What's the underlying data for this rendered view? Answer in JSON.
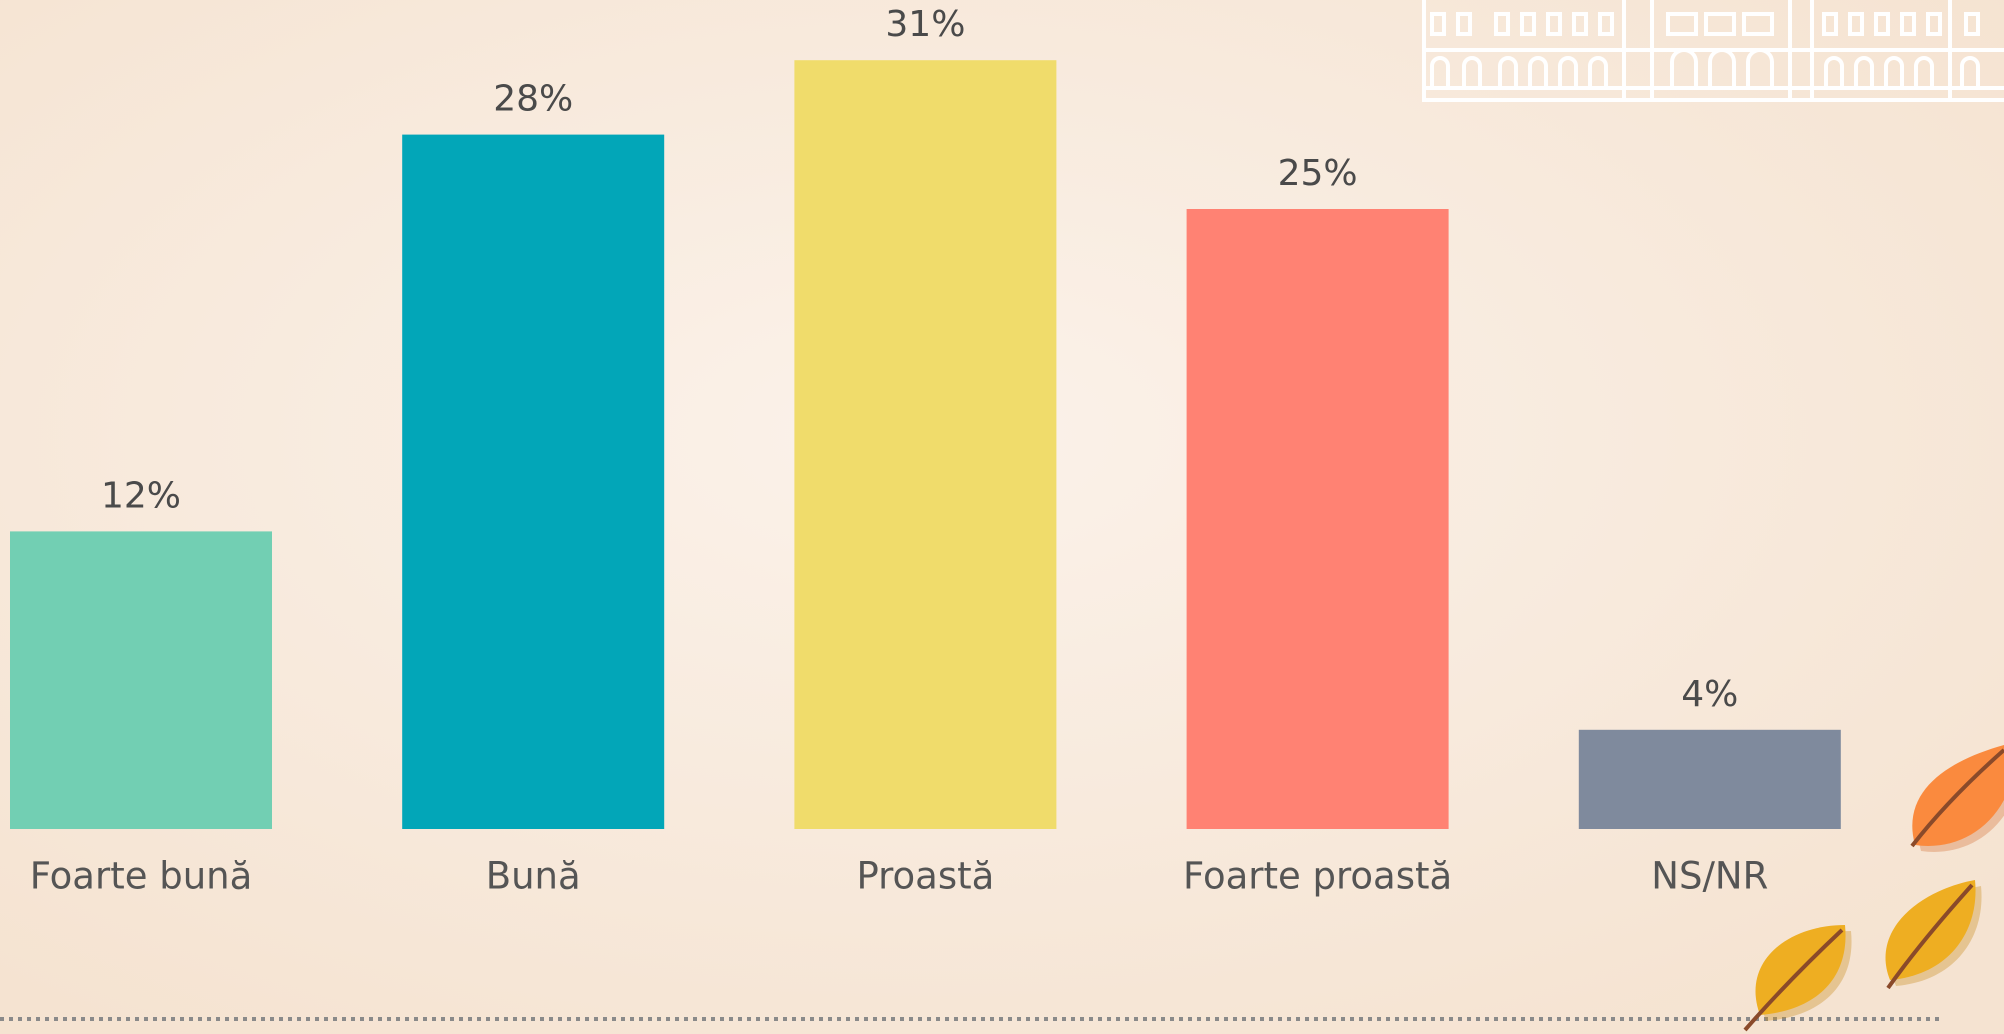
{
  "chart_data": {
    "type": "bar",
    "categories": [
      "Foarte bună",
      "Bună",
      "Proastă",
      "Foarte proastă",
      "NS/NR"
    ],
    "values": [
      12,
      28,
      31,
      25,
      4
    ],
    "value_labels": [
      "12%",
      "28%",
      "31%",
      "25%",
      "4%"
    ],
    "colors": [
      "#72cfb3",
      "#02a6b8",
      "#f0dc6b",
      "#ff8273",
      "#7f8a9d"
    ]
  }
}
